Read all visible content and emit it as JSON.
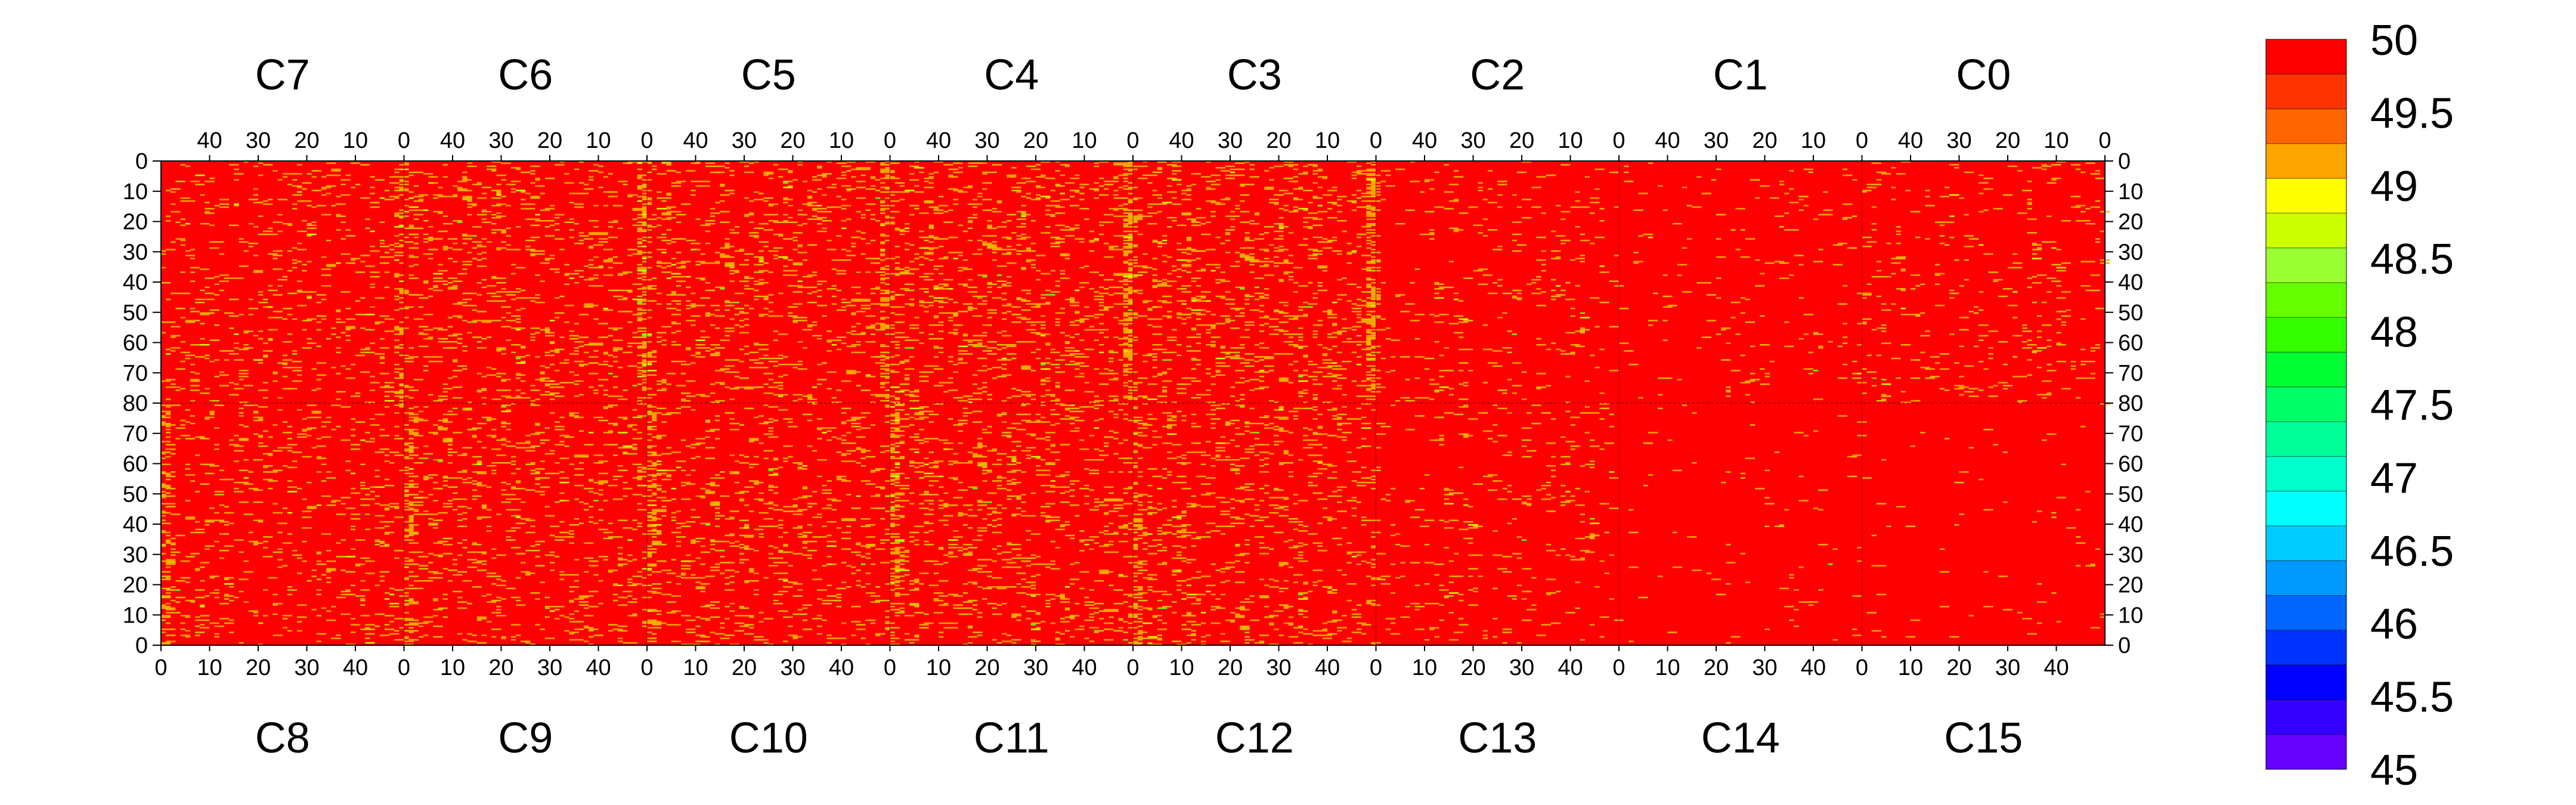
{
  "chart_data": {
    "type": "heatmap",
    "title": "",
    "top_panel_labels": [
      "C7",
      "C6",
      "C5",
      "C4",
      "C3",
      "C2",
      "C1",
      "C0"
    ],
    "bottom_panel_labels": [
      "C8",
      "C9",
      "C10",
      "C11",
      "C12",
      "C13",
      "C14",
      "C15"
    ],
    "top_x_ticks": [
      "40",
      "30",
      "20",
      "10",
      "0"
    ],
    "bottom_x_ticks": [
      "0",
      "10",
      "20",
      "30",
      "40"
    ],
    "y_ticks_upper": [
      "0",
      "10",
      "20",
      "30",
      "40",
      "50",
      "60",
      "70",
      "80"
    ],
    "y_ticks_lower": [
      "70",
      "60",
      "50",
      "40",
      "30",
      "20",
      "10",
      "0"
    ],
    "x_range_per_panel": [
      0,
      50
    ],
    "y_range_per_half": [
      0,
      80
    ],
    "panel_columns": 8,
    "rows": 2,
    "colorbar": {
      "min": 45,
      "max": 50,
      "labels": [
        "50",
        "49.5",
        "49",
        "48.5",
        "48",
        "47.5",
        "47",
        "46.5",
        "46",
        "45.5",
        "45"
      ],
      "colors": [
        "#ff0000",
        "#ff3300",
        "#ff6600",
        "#ffa500",
        "#ffff00",
        "#ccff00",
        "#99ff33",
        "#66ff00",
        "#33ff00",
        "#00ff33",
        "#00ff66",
        "#00ff99",
        "#00ffcc",
        "#00ffff",
        "#00ccff",
        "#0099ff",
        "#0066ff",
        "#0033ff",
        "#0000ff",
        "#3300ff",
        "#6600ff"
      ]
    },
    "dominant_value": 50,
    "dominant_color": "#ff0000",
    "outlier_colors": [
      "#ffa500",
      "#e6b800",
      "#ccff00",
      "#66ff00"
    ],
    "panel_noise_density": [
      [
        0.06,
        0.09,
        0.09,
        0.1,
        0.1,
        0.03,
        0.02,
        0.04
      ],
      [
        0.06,
        0.08,
        0.08,
        0.09,
        0.08,
        0.03,
        0.01,
        0.01
      ]
    ]
  }
}
